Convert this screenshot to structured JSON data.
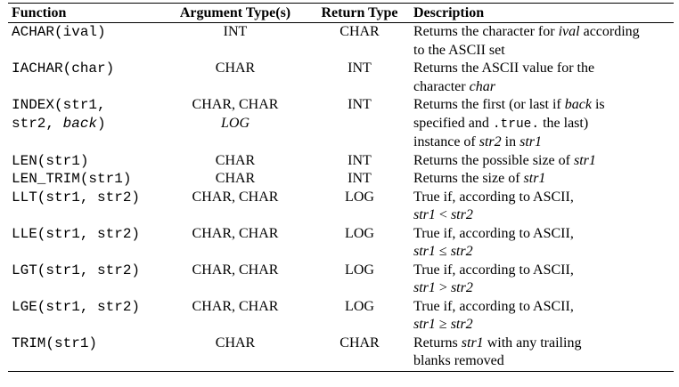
{
  "headers": {
    "function": "Function",
    "argument_types": "Argument Type(s)",
    "return_type": "Return Type",
    "description": "Description"
  },
  "rows": [
    {
      "fn": [
        "ACHAR(",
        "ival",
        ")"
      ],
      "args": "INT",
      "ret": "CHAR",
      "desc": [
        "Returns the character for ",
        "ival",
        " according",
        "to the ASCII set"
      ]
    },
    {
      "fn": [
        "IACHAR(char)"
      ],
      "args": "CHAR",
      "ret": "INT",
      "desc": [
        "Returns the ASCII value for the",
        "character ",
        "char"
      ]
    },
    {
      "fn": [
        "INDEX(str1,",
        "str2, ",
        "back",
        ")"
      ],
      "args": "CHAR, CHAR",
      "args2": "LOG",
      "ret": "INT",
      "desc": [
        "Returns the first (or last if ",
        "back",
        " is",
        "specified and ",
        ".true.",
        " the last)",
        "instance of ",
        "str2",
        " in ",
        "str1"
      ]
    },
    {
      "fn": [
        "LEN(str1)"
      ],
      "args": "CHAR",
      "ret": "INT",
      "desc": [
        "Returns the possible size of ",
        "str1"
      ]
    },
    {
      "fn": [
        "LEN_TRIM(str1)"
      ],
      "args": "CHAR",
      "ret": "INT",
      "desc": [
        "Returns the size of ",
        "str1"
      ]
    },
    {
      "fn": [
        "LLT(str1, str2)"
      ],
      "args": "CHAR, CHAR",
      "ret": "LOG",
      "desc": [
        "True if, according to ASCII,",
        "str1",
        " < ",
        "str2"
      ]
    },
    {
      "fn": [
        "LLE(str1, str2)"
      ],
      "args": "CHAR, CHAR",
      "ret": "LOG",
      "desc": [
        "True if, according to ASCII,",
        "str1",
        " ≤ ",
        "str2"
      ]
    },
    {
      "fn": [
        "LGT(str1, str2)"
      ],
      "args": "CHAR, CHAR",
      "ret": "LOG",
      "desc": [
        "True if, according to ASCII,",
        "str1",
        " > ",
        "str2"
      ]
    },
    {
      "fn": [
        "LGE(str1, str2)"
      ],
      "args": "CHAR, CHAR",
      "ret": "LOG",
      "desc": [
        "True if, according to ASCII,",
        "str1",
        " ≥ ",
        "str2"
      ]
    },
    {
      "fn": [
        "TRIM(str1)"
      ],
      "args": "CHAR",
      "ret": "CHAR",
      "desc": [
        "Returns ",
        "str1",
        " with any trailing",
        "blanks removed"
      ]
    }
  ]
}
